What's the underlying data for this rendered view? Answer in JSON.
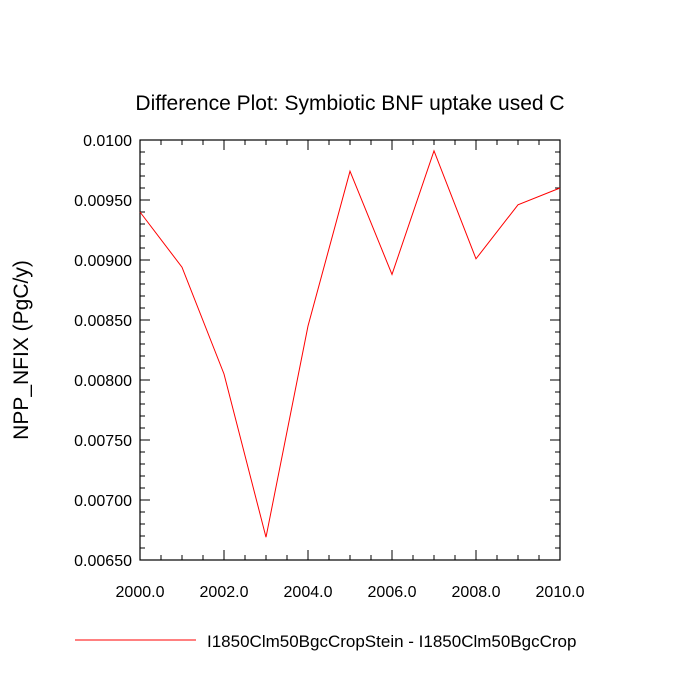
{
  "chart_data": {
    "type": "line",
    "title": "Difference Plot: Symbiotic BNF uptake used C",
    "xlabel": "",
    "ylabel": "NPP_NFIX  (PgC/y)",
    "xlim": [
      2000,
      2010
    ],
    "ylim": [
      0.0065,
      0.01
    ],
    "x_ticks": [
      "2000.0",
      "2002.0",
      "2004.0",
      "2006.0",
      "2008.0",
      "2010.0"
    ],
    "y_ticks": [
      "0.00650",
      "0.00700",
      "0.00750",
      "0.00800",
      "0.00850",
      "0.00900",
      "0.00950",
      "0.0100"
    ],
    "grid": false,
    "legend": "bottom",
    "series": [
      {
        "name": "I1850Clm50BgcCropStein - I1850Clm50BgcCrop",
        "color": "#ff0000",
        "x": [
          2000,
          2001,
          2002,
          2003,
          2004,
          2005,
          2006,
          2007,
          2008,
          2009,
          2010
        ],
        "values": [
          0.0094,
          0.00894,
          0.00805,
          0.00669,
          0.00845,
          0.00974,
          0.00888,
          0.00991,
          0.00901,
          0.00946,
          0.0096
        ]
      }
    ]
  }
}
